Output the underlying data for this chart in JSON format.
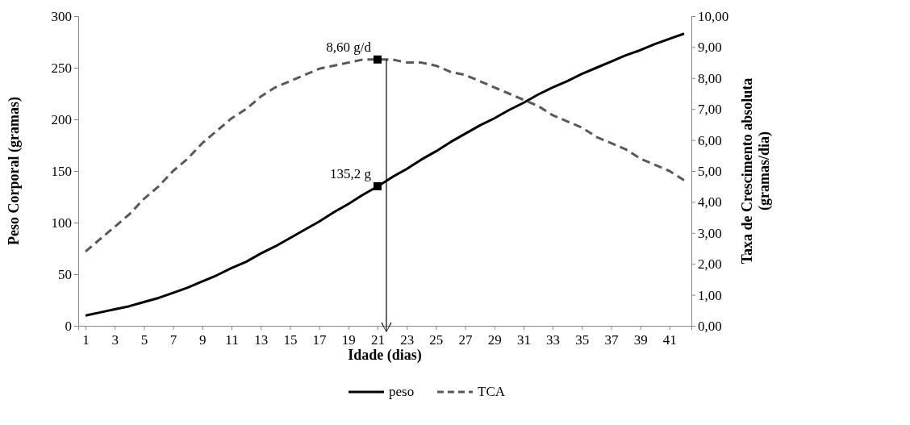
{
  "chart_data": {
    "type": "line",
    "xlabel": "Idade (dias)",
    "ylabel": "Peso Corporal (gramas)",
    "y2label": "Taxa de Crescimento absoluta (gramas/dia)",
    "x": [
      1,
      2,
      3,
      4,
      5,
      6,
      7,
      8,
      9,
      10,
      11,
      12,
      13,
      14,
      15,
      16,
      17,
      18,
      19,
      20,
      21,
      22,
      23,
      24,
      25,
      26,
      27,
      28,
      29,
      30,
      31,
      32,
      33,
      34,
      35,
      36,
      37,
      38,
      39,
      40,
      41,
      42
    ],
    "xlim": [
      0.5,
      42.5
    ],
    "xticks": [
      1,
      3,
      5,
      7,
      9,
      11,
      13,
      15,
      17,
      19,
      21,
      23,
      25,
      27,
      29,
      31,
      33,
      35,
      37,
      39,
      41
    ],
    "series": [
      {
        "name": "peso",
        "color": "#000000",
        "line_style": "solid",
        "values": [
          10,
          13,
          16,
          19,
          23,
          27,
          32,
          37,
          43,
          49,
          56,
          62,
          70,
          77,
          85,
          93,
          101,
          110,
          118,
          127,
          135,
          144,
          152,
          161,
          169,
          178,
          186,
          194,
          201,
          209,
          216,
          224,
          231,
          237,
          244,
          250,
          256,
          262,
          267,
          273,
          278,
          283
        ]
      },
      {
        "name": "TCA",
        "color": "#595959",
        "line_style": "dashed",
        "axis": "y2",
        "values": [
          2.4,
          2.8,
          3.2,
          3.6,
          4.1,
          4.5,
          5.0,
          5.4,
          5.9,
          6.3,
          6.7,
          7.0,
          7.4,
          7.7,
          7.9,
          8.1,
          8.3,
          8.4,
          8.5,
          8.6,
          8.6,
          8.6,
          8.5,
          8.5,
          8.4,
          8.2,
          8.1,
          7.9,
          7.7,
          7.5,
          7.3,
          7.1,
          6.8,
          6.6,
          6.4,
          6.1,
          5.9,
          5.7,
          5.4,
          5.2,
          5.0,
          4.7
        ]
      }
    ],
    "ylim": [
      0,
      300
    ],
    "yticks": [
      0,
      50,
      100,
      150,
      200,
      250,
      300
    ],
    "y2lim": [
      0,
      10
    ],
    "y2ticks": [
      {
        "value": 0,
        "label": "0,00"
      },
      {
        "value": 1,
        "label": "1,00"
      },
      {
        "value": 2,
        "label": "2,00"
      },
      {
        "value": 3,
        "label": "3,00"
      },
      {
        "value": 4,
        "label": "4,00"
      },
      {
        "value": 5,
        "label": "5,00"
      },
      {
        "value": 6,
        "label": "6,00"
      },
      {
        "value": 7,
        "label": "7,00"
      },
      {
        "value": 8,
        "label": "8,00"
      },
      {
        "value": 9,
        "label": "9,00"
      },
      {
        "value": 10,
        "label": "10,00"
      }
    ],
    "annotations": [
      "8,60 g/d",
      {
        "text": "135,2 g",
        "x": 21,
        "y": 135.2
      }
    ],
    "grid": false,
    "legend": "bottom"
  }
}
